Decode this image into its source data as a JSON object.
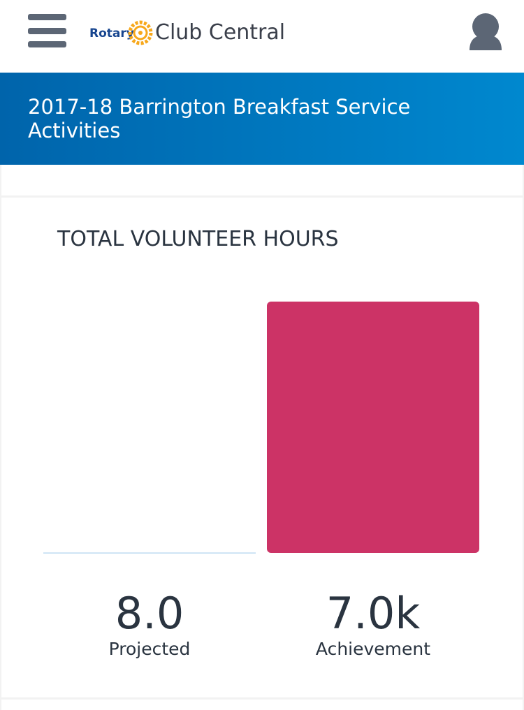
{
  "header": {
    "brand": "Rotary",
    "app_name": "Club Central"
  },
  "banner": {
    "title": "2017-18 Barrington Breakfast Service Activities"
  },
  "chart_data": {
    "type": "bar",
    "title": "TOTAL VOLUNTEER HOURS",
    "categories": [
      "Projected",
      "Achievement"
    ],
    "values": [
      8,
      7000
    ],
    "value_labels": [
      "8.0",
      "7.0k"
    ],
    "colors": [
      "#9cc9ea",
      "#cc3366"
    ],
    "ylim": [
      0,
      7000
    ]
  }
}
